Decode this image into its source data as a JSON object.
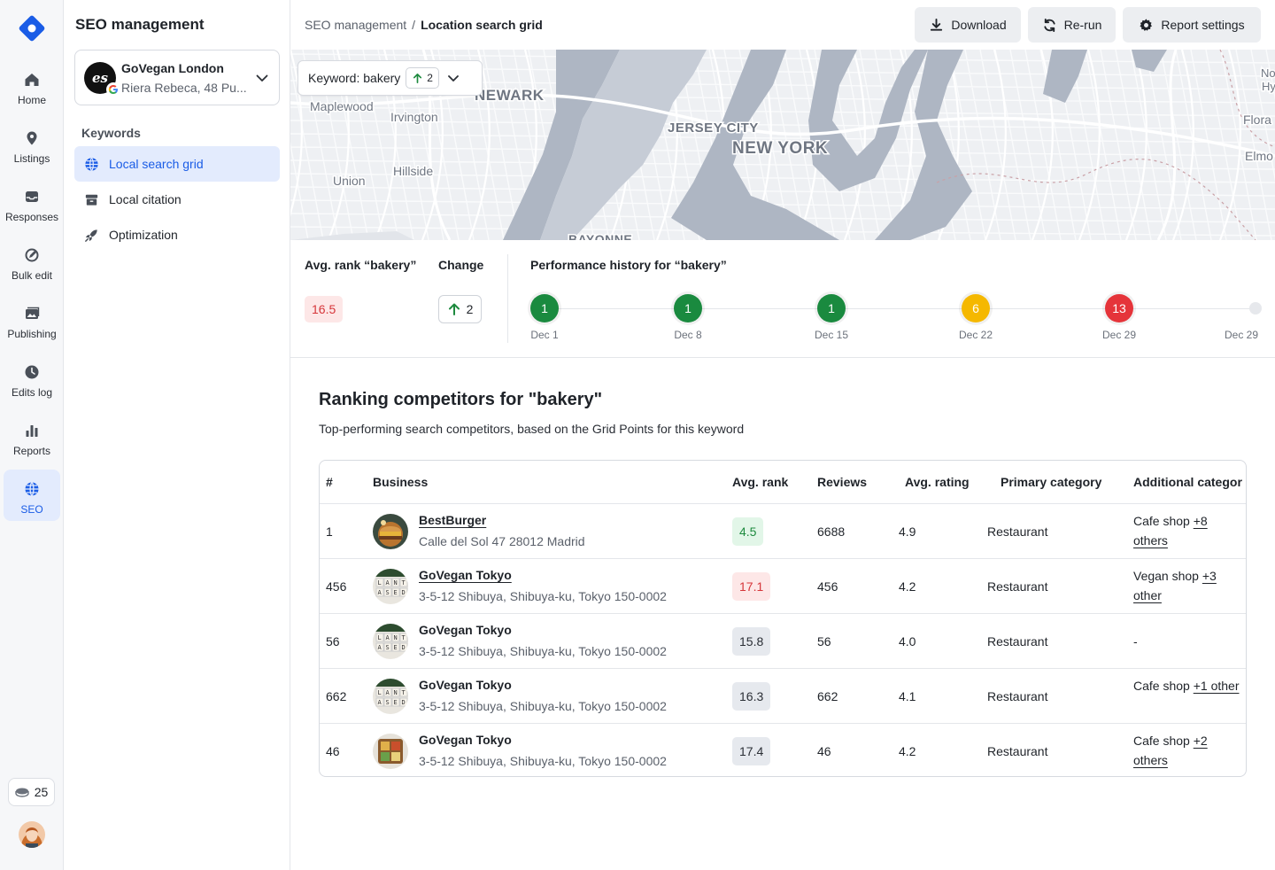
{
  "rail": {
    "items": [
      {
        "label": "Home",
        "icon": "home-icon"
      },
      {
        "label": "Listings",
        "icon": "location-pin-icon"
      },
      {
        "label": "Responses",
        "icon": "inbox-icon"
      },
      {
        "label": "Bulk edit",
        "icon": "bulk-edit-icon"
      },
      {
        "label": "Publishing",
        "icon": "images-icon"
      },
      {
        "label": "Edits log",
        "icon": "clock-icon"
      },
      {
        "label": "Reports",
        "icon": "bar-chart-icon"
      },
      {
        "label": "SEO",
        "icon": "globe-icon"
      }
    ],
    "active": "SEO",
    "credits": "25"
  },
  "subnav": {
    "title": "SEO management",
    "location": {
      "name": "GoVegan London",
      "address": "Riera Rebeca, 48 Pu...",
      "logo_text": "es"
    },
    "keywords_heading": "Keywords",
    "items": [
      {
        "label": "Local search grid",
        "icon": "globe-icon"
      },
      {
        "label": "Local citation",
        "icon": "archive-icon"
      },
      {
        "label": "Optimization",
        "icon": "rocket-icon"
      }
    ],
    "active": "Local search grid"
  },
  "header": {
    "breadcrumb_root": "SEO management",
    "breadcrumb_sep": "/",
    "breadcrumb_current": "Location search grid",
    "download_label": "Download",
    "rerun_label": "Re-run",
    "settings_label": "Report settings"
  },
  "map": {
    "keyword_label": "Keyword: bakery",
    "keyword_change": "2",
    "places": [
      {
        "name": "NEWARK",
        "kind": "city"
      },
      {
        "name": "Maplewood",
        "kind": "town"
      },
      {
        "name": "Irvington",
        "kind": "town"
      },
      {
        "name": "JERSEY CITY",
        "kind": "city"
      },
      {
        "name": "NEW YORK",
        "kind": "metro"
      },
      {
        "name": "Hillside",
        "kind": "town"
      },
      {
        "name": "Union",
        "kind": "town"
      },
      {
        "name": "BAYONNE",
        "kind": "city"
      },
      {
        "name": "Flora",
        "kind": "town"
      },
      {
        "name": "Elmo",
        "kind": "town"
      },
      {
        "name": "No",
        "kind": "town"
      },
      {
        "name": "Hy",
        "kind": "town"
      }
    ]
  },
  "stats": {
    "avg_rank_label": "Avg. rank “bakery”",
    "avg_rank_value": "16.5",
    "change_label": "Change",
    "change_value": "2",
    "history_title": "Performance history for “bakery”",
    "history": [
      {
        "date": "Dec 1",
        "rank": "1",
        "status": "good"
      },
      {
        "date": "Dec 8",
        "rank": "1",
        "status": "good"
      },
      {
        "date": "Dec 15",
        "rank": "1",
        "status": "good"
      },
      {
        "date": "Dec 22",
        "rank": "6",
        "status": "warn"
      },
      {
        "date": "Dec 29",
        "rank": "13",
        "status": "bad"
      },
      {
        "date": "Dec 29",
        "rank": "",
        "status": "empty"
      }
    ],
    "status_colors": {
      "good": "#1a8a3f",
      "warn": "#f5b800",
      "bad": "#e5343a"
    }
  },
  "competitors": {
    "title": "Ranking competitors for \"bakery\"",
    "subtitle": "Top-performing search competitors, based on the Grid Points for this keyword",
    "columns": [
      "#",
      "Business",
      "Avg. rank",
      "Reviews",
      "Avg. rating",
      "Primary category",
      "Additional categor"
    ],
    "rows": [
      {
        "num": "1",
        "name": "BestBurger",
        "link": true,
        "address": "Calle del Sol 47 28012 Madrid",
        "rank": "4.5",
        "rank_tone": "good",
        "reviews": "6688",
        "rating": "4.9",
        "primary": "Restaurant",
        "additional": "Cafe shop",
        "more": "+8 others",
        "image": "burger-thumb"
      },
      {
        "num": "456",
        "name": "GoVegan Tokyo",
        "link": true,
        "address": "3-5-12 Shibuya, Shibuya-ku, Tokyo 150-0002",
        "rank": "17.1",
        "rank_tone": "bad",
        "reviews": "456",
        "rating": "4.2",
        "primary": "Restaurant",
        "additional": "Vegan shop",
        "more": "+3 other",
        "image": "letters-thumb"
      },
      {
        "num": "56",
        "name": "GoVegan Tokyo",
        "link": false,
        "address": "3-5-12 Shibuya, Shibuya-ku, Tokyo 150-0002",
        "rank": "15.8",
        "rank_tone": "neutral",
        "reviews": "56",
        "rating": "4.0",
        "primary": "Restaurant",
        "additional": "-",
        "more": "",
        "image": "letters-thumb"
      },
      {
        "num": "662",
        "name": "GoVegan Tokyo",
        "link": false,
        "address": "3-5-12 Shibuya, Shibuya-ku, Tokyo 150-0002",
        "rank": "16.3",
        "rank_tone": "neutral",
        "reviews": "662",
        "rating": "4.1",
        "primary": "Restaurant",
        "additional": "Cafe shop",
        "more": "+1 other",
        "image": "letters-thumb"
      },
      {
        "num": "46",
        "name": "GoVegan Tokyo",
        "link": false,
        "address": "3-5-12 Shibuya, Shibuya-ku, Tokyo 150-0002",
        "rank": "17.4",
        "rank_tone": "neutral",
        "reviews": "46",
        "rating": "4.2",
        "primary": "Restaurant",
        "additional": "Cafe shop",
        "more": "+2 others",
        "image": "food-thumb"
      }
    ]
  },
  "colors": {
    "accent": "#1a5ce6",
    "accent_bg": "#e3ebfd"
  }
}
